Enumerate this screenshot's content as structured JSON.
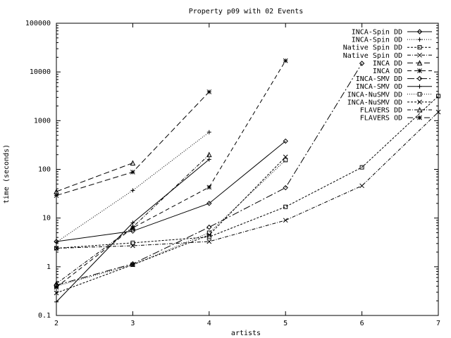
{
  "chart_data": {
    "type": "line",
    "title": "Property p09 with 02 Events",
    "xlabel": "artists",
    "ylabel": "time (seconds)",
    "xscale": "linear",
    "yscale": "log",
    "xlim": [
      2,
      7
    ],
    "ylim": [
      0.1,
      100000
    ],
    "xticks": [
      "2",
      "3",
      "4",
      "5",
      "6",
      "7"
    ],
    "yticks": [
      "0.1",
      "1",
      "10",
      "100",
      "1000",
      "10000",
      "100000"
    ],
    "grid": false,
    "legend_position": "top-right",
    "series": [
      {
        "name": "INCA-Spin DD",
        "color": "#000000",
        "dash": "",
        "marker": "diamond",
        "points": [
          [
            2,
            3.3
          ],
          [
            3,
            5.4
          ],
          [
            4,
            20
          ],
          [
            5,
            380
          ]
        ]
      },
      {
        "name": "INCA-Spin OD",
        "color": "#000000",
        "dash": "1,2",
        "marker": "plus",
        "points": [
          [
            2,
            3.2
          ],
          [
            3,
            37
          ],
          [
            4,
            580
          ]
        ]
      },
      {
        "name": "Native Spin DD",
        "color": "#000000",
        "dash": "3,2",
        "marker": "square",
        "points": [
          [
            2,
            2.4
          ],
          [
            3,
            3.1
          ],
          [
            4,
            4.1
          ],
          [
            5,
            17
          ],
          [
            6,
            110
          ],
          [
            7,
            3200
          ]
        ]
      },
      {
        "name": "Native Spin OD",
        "color": "#000000",
        "dash": "5,2,1,2",
        "marker": "cross",
        "points": [
          [
            2,
            2.4
          ],
          [
            3,
            2.7
          ],
          [
            4,
            3.3
          ],
          [
            5,
            9
          ],
          [
            6,
            46
          ],
          [
            7,
            1500
          ]
        ]
      },
      {
        "name": "INCA DD",
        "color": "#000000",
        "dash": "8,4",
        "marker": "triangle",
        "points": [
          [
            2,
            35
          ],
          [
            3,
            135
          ]
        ]
      },
      {
        "name": "INCA OD",
        "color": "#000000",
        "dash": "6,4",
        "marker": "star",
        "points": [
          [
            2,
            0.38
          ],
          [
            3,
            6.3
          ],
          [
            4,
            43
          ],
          [
            5,
            17000
          ]
        ]
      },
      {
        "name": "INCA-SMV DD",
        "color": "#000000",
        "dash": "10,3,2,3",
        "marker": "diamond",
        "points": [
          [
            2,
            0.42
          ],
          [
            3,
            1.15
          ],
          [
            4,
            6.5
          ],
          [
            5,
            42
          ],
          [
            6,
            15000
          ]
        ]
      },
      {
        "name": "INCA-SMV OD",
        "color": "#000000",
        "dash": "",
        "marker": "plus",
        "points": [
          [
            2,
            0.19
          ],
          [
            3,
            8
          ],
          [
            4,
            160
          ]
        ]
      },
      {
        "name": "INCA-NuSMV DD",
        "color": "#000000",
        "dash": "1,2",
        "marker": "square",
        "points": [
          [
            2,
            0.4
          ],
          [
            3,
            1.1
          ],
          [
            4,
            5
          ],
          [
            5,
            155
          ]
        ]
      },
      {
        "name": "INCA-NuSMV OD",
        "color": "#000000",
        "dash": "3,2",
        "marker": "cross",
        "points": [
          [
            2,
            0.29
          ],
          [
            3,
            1.1
          ],
          [
            4,
            4.5
          ],
          [
            5,
            180
          ]
        ]
      },
      {
        "name": "FLAVERS DD",
        "color": "#000000",
        "dash": "5,2,1,2",
        "marker": "triangle",
        "points": [
          [
            2,
            0.45
          ],
          [
            3,
            6.5
          ],
          [
            4,
            200
          ]
        ]
      },
      {
        "name": "FLAVERS OD",
        "color": "#000000",
        "dash": "8,4",
        "marker": "star",
        "points": [
          [
            2,
            29
          ],
          [
            3,
            88
          ],
          [
            4,
            3900
          ]
        ]
      }
    ]
  }
}
